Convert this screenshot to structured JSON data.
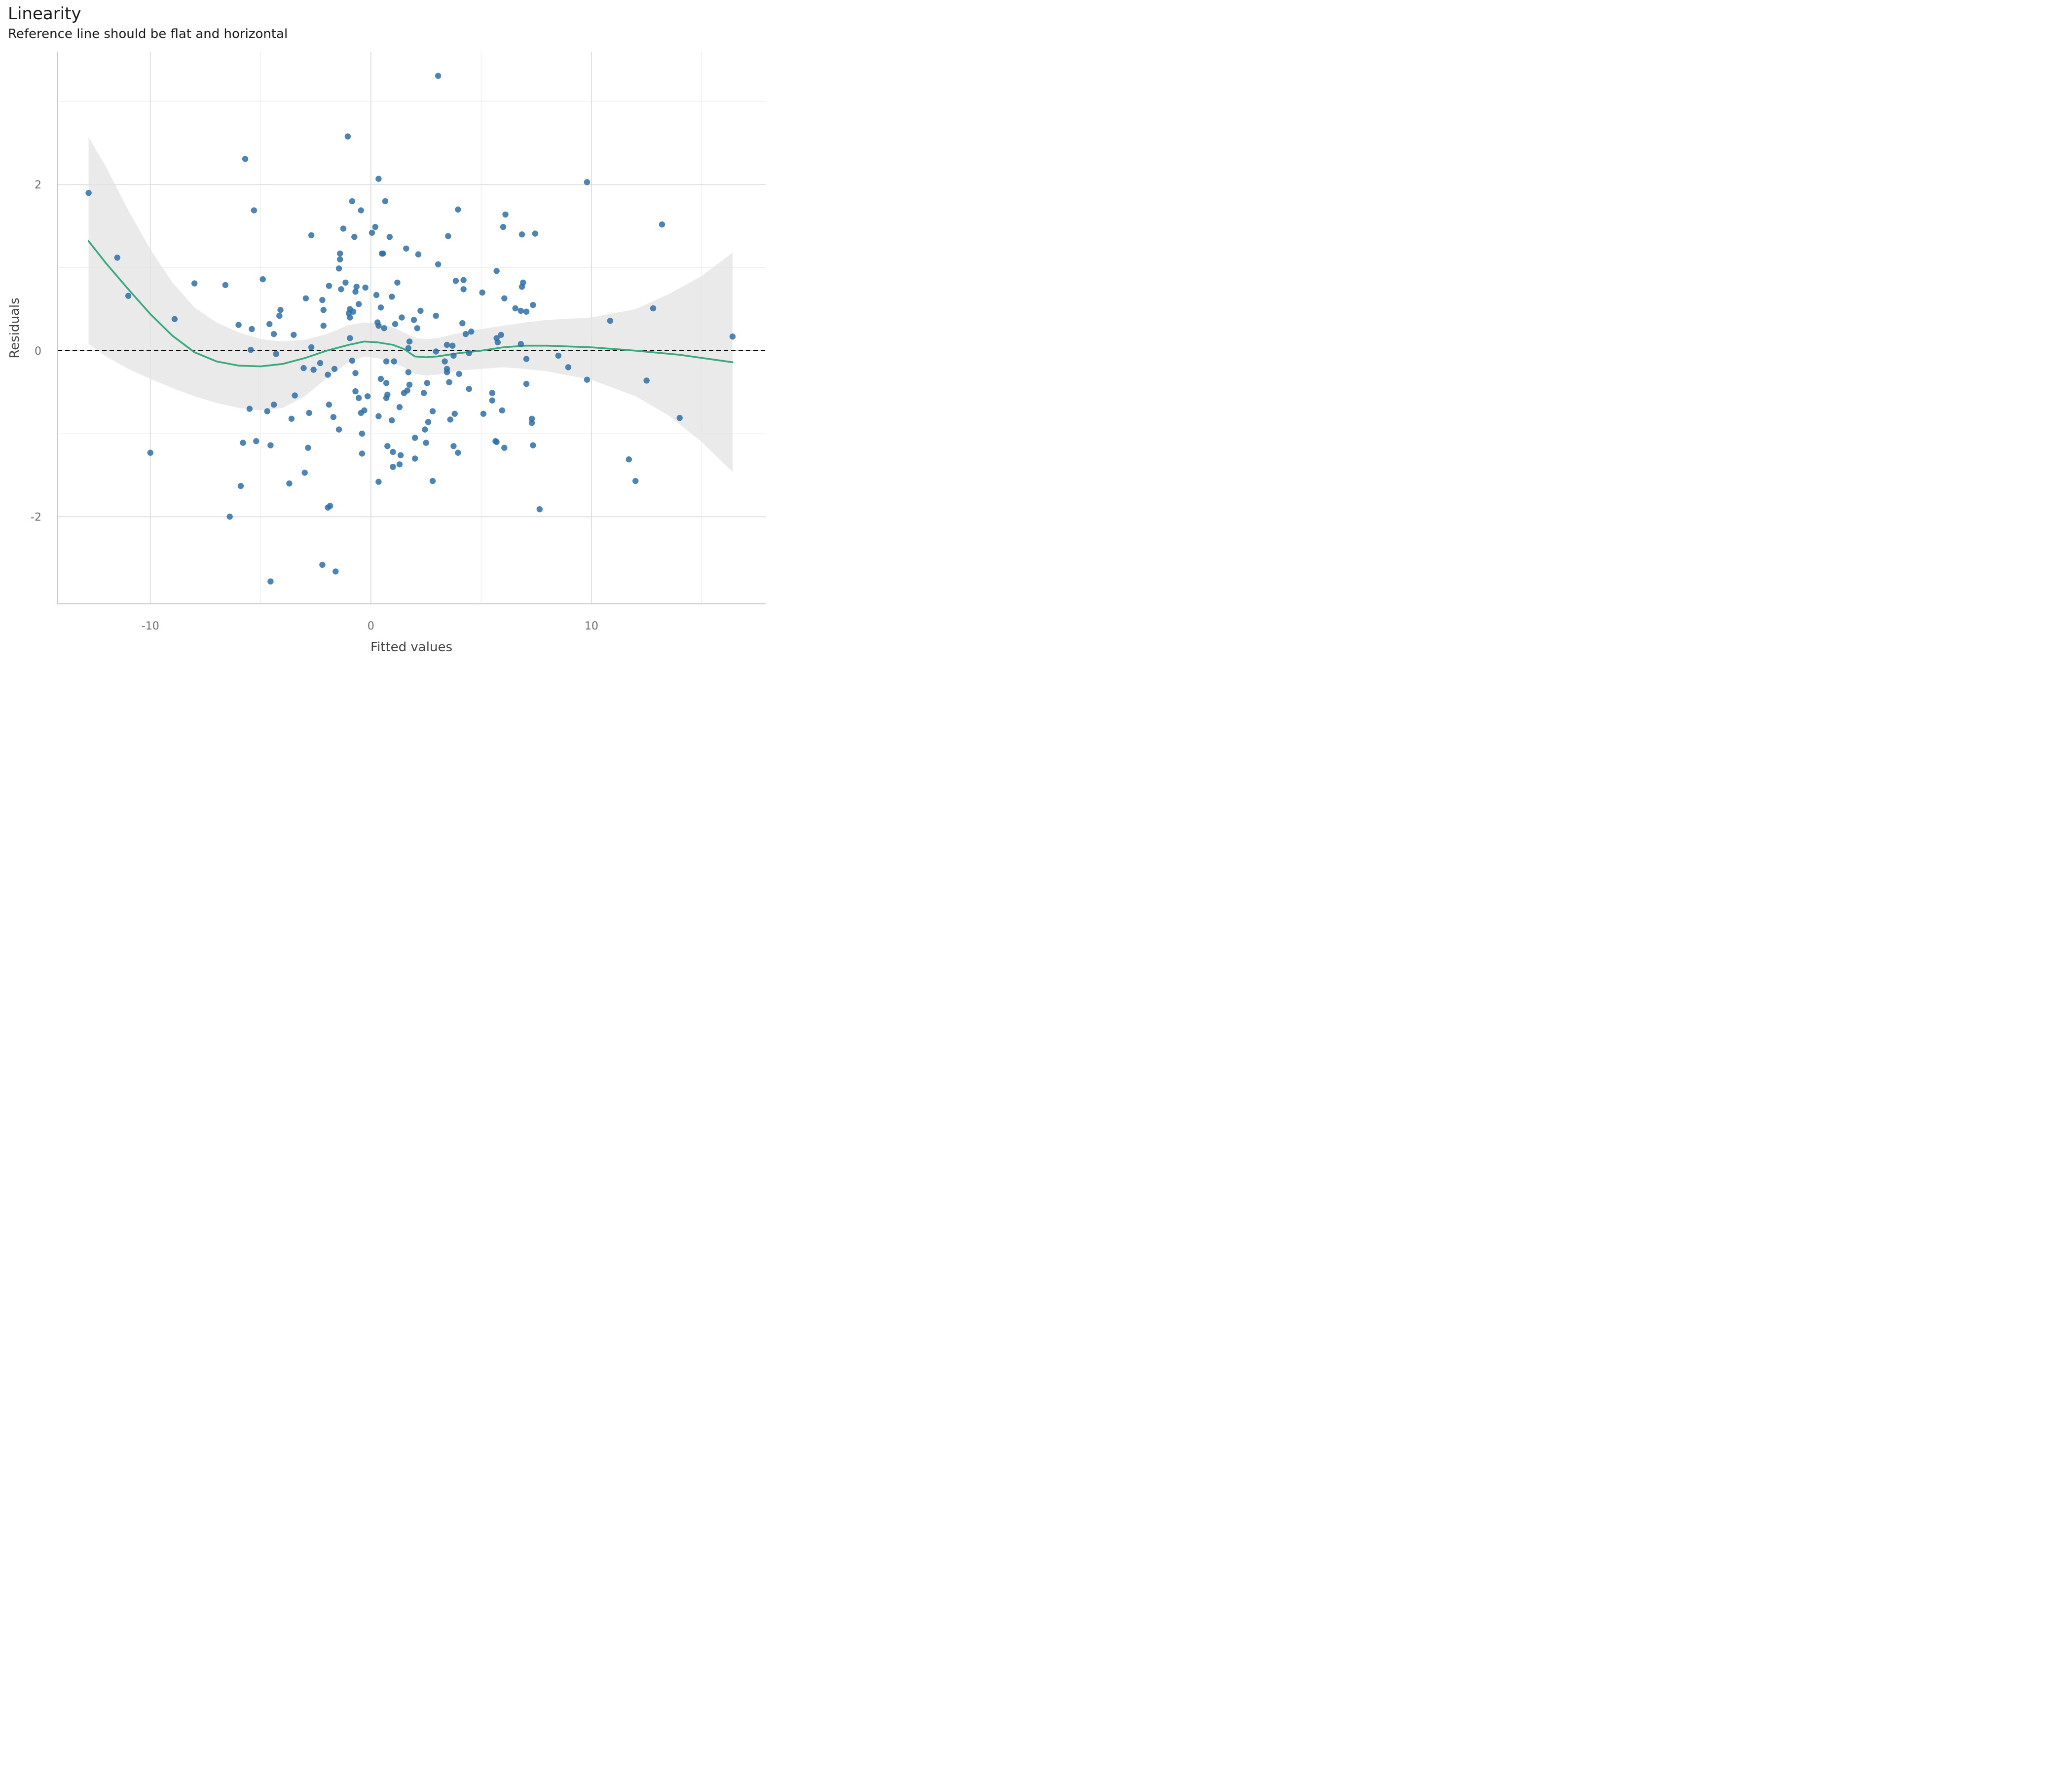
{
  "chart_data": {
    "type": "scatter",
    "title": "Linearity",
    "subtitle": "Reference line should be flat and horizontal",
    "xlabel": "Fitted values",
    "ylabel": "Residuals",
    "xlim": [
      -14.2,
      17.9
    ],
    "ylim": [
      -3.05,
      3.6
    ],
    "xticks": [
      -10,
      0,
      10
    ],
    "xtick_labels": [
      "-10",
      "0",
      "10"
    ],
    "yticks": [
      -2,
      0,
      2
    ],
    "ytick_labels": [
      "-2",
      "0",
      "2"
    ],
    "minor_xticks": [
      -5,
      5,
      15
    ],
    "minor_yticks": [
      -1,
      1,
      3
    ],
    "grid": true,
    "reference_line": 0,
    "colors": {
      "points": "#2b6ea8",
      "smooth": "#3aaa7e",
      "band": "#e3e3e3",
      "reference": "#000000",
      "grid": "#e0e0e0",
      "axis": "#c9c9c9"
    },
    "points": [
      [
        -12.8,
        1.9
      ],
      [
        -11.5,
        1.12
      ],
      [
        -11.0,
        0.66
      ],
      [
        -10.0,
        -1.23
      ],
      [
        -8.9,
        0.38
      ],
      [
        -8.0,
        0.81
      ],
      [
        -6.6,
        0.79
      ],
      [
        -6.4,
        -2.0
      ],
      [
        -6.0,
        0.31
      ],
      [
        -5.9,
        -1.63
      ],
      [
        -5.8,
        -1.11
      ],
      [
        -5.7,
        2.31
      ],
      [
        -5.5,
        -0.7
      ],
      [
        -5.45,
        0.01
      ],
      [
        -5.4,
        0.26
      ],
      [
        -5.3,
        1.69
      ],
      [
        -5.2,
        -1.09
      ],
      [
        -4.9,
        0.86
      ],
      [
        -4.7,
        -0.73
      ],
      [
        -4.6,
        0.32
      ],
      [
        -4.55,
        -1.14
      ],
      [
        -4.55,
        -2.78
      ],
      [
        -4.4,
        -0.65
      ],
      [
        -4.4,
        0.2
      ],
      [
        -4.3,
        -0.04
      ],
      [
        -4.15,
        0.42
      ],
      [
        -4.1,
        0.49
      ],
      [
        -3.7,
        -1.6
      ],
      [
        -3.6,
        -0.82
      ],
      [
        -3.5,
        0.19
      ],
      [
        -3.45,
        -0.54
      ],
      [
        -3.05,
        -0.21
      ],
      [
        -3.0,
        -1.47
      ],
      [
        -2.95,
        0.63
      ],
      [
        -2.85,
        -1.17
      ],
      [
        -2.8,
        -0.75
      ],
      [
        -2.7,
        1.39
      ],
      [
        -2.7,
        0.04
      ],
      [
        -2.6,
        -0.23
      ],
      [
        -2.3,
        -0.15
      ],
      [
        -2.2,
        0.61
      ],
      [
        -2.2,
        -2.58
      ],
      [
        -2.15,
        0.49
      ],
      [
        -2.15,
        0.3
      ],
      [
        -1.95,
        -0.29
      ],
      [
        -1.95,
        -1.89
      ],
      [
        -1.9,
        0.78
      ],
      [
        -1.9,
        -0.65
      ],
      [
        -1.85,
        -1.87
      ],
      [
        -1.7,
        -0.8
      ],
      [
        -1.65,
        -0.22
      ],
      [
        -1.6,
        -2.66
      ],
      [
        -1.45,
        0.99
      ],
      [
        -1.45,
        -0.95
      ],
      [
        -1.4,
        1.1
      ],
      [
        -1.4,
        1.17
      ],
      [
        -1.35,
        0.74
      ],
      [
        -1.25,
        1.47
      ],
      [
        -1.15,
        0.82
      ],
      [
        -1.05,
        2.58
      ],
      [
        -1.0,
        0.45
      ],
      [
        -0.95,
        0.5
      ],
      [
        -0.95,
        0.4
      ],
      [
        -0.95,
        0.15
      ],
      [
        -0.85,
        1.8
      ],
      [
        -0.85,
        -0.12
      ],
      [
        -0.8,
        0.47
      ],
      [
        -0.75,
        1.37
      ],
      [
        -0.7,
        0.71
      ],
      [
        -0.7,
        -0.27
      ],
      [
        -0.7,
        -0.49
      ],
      [
        -0.65,
        0.77
      ],
      [
        -0.55,
        0.56
      ],
      [
        -0.55,
        -0.57
      ],
      [
        -0.45,
        1.69
      ],
      [
        -0.45,
        -0.75
      ],
      [
        -0.4,
        -1.0
      ],
      [
        -0.4,
        -1.24
      ],
      [
        -0.3,
        -0.72
      ],
      [
        -0.25,
        0.76
      ],
      [
        -0.15,
        -0.55
      ],
      [
        0.05,
        1.42
      ],
      [
        0.2,
        1.49
      ],
      [
        0.25,
        0.67
      ],
      [
        0.3,
        0.34
      ],
      [
        0.35,
        0.3
      ],
      [
        0.35,
        2.07
      ],
      [
        0.35,
        -0.79
      ],
      [
        0.35,
        -1.58
      ],
      [
        0.45,
        0.52
      ],
      [
        0.45,
        -0.34
      ],
      [
        0.5,
        1.17
      ],
      [
        0.55,
        1.17
      ],
      [
        0.6,
        0.27
      ],
      [
        0.65,
        1.8
      ],
      [
        0.7,
        -0.13
      ],
      [
        0.7,
        -0.39
      ],
      [
        0.7,
        -0.57
      ],
      [
        0.75,
        -1.15
      ],
      [
        0.75,
        -0.53
      ],
      [
        0.85,
        1.37
      ],
      [
        0.95,
        -0.84
      ],
      [
        0.95,
        0.65
      ],
      [
        1.0,
        -1.4
      ],
      [
        1.0,
        -1.22
      ],
      [
        1.05,
        -0.13
      ],
      [
        1.1,
        0.32
      ],
      [
        1.2,
        0.82
      ],
      [
        1.3,
        -1.37
      ],
      [
        1.3,
        -0.68
      ],
      [
        1.35,
        -1.26
      ],
      [
        1.4,
        0.4
      ],
      [
        1.5,
        -0.51
      ],
      [
        1.6,
        1.23
      ],
      [
        1.65,
        -0.48
      ],
      [
        1.7,
        -0.26
      ],
      [
        1.7,
        0.03
      ],
      [
        1.75,
        0.11
      ],
      [
        1.75,
        -0.41
      ],
      [
        1.95,
        0.37
      ],
      [
        2.0,
        -1.05
      ],
      [
        2.0,
        -1.3
      ],
      [
        2.1,
        0.27
      ],
      [
        2.15,
        1.16
      ],
      [
        2.25,
        0.48
      ],
      [
        2.4,
        -0.51
      ],
      [
        2.45,
        -0.95
      ],
      [
        2.5,
        -1.11
      ],
      [
        2.55,
        -0.39
      ],
      [
        2.6,
        -0.86
      ],
      [
        2.8,
        -0.73
      ],
      [
        2.8,
        -1.57
      ],
      [
        2.95,
        0.42
      ],
      [
        2.95,
        -0.01
      ],
      [
        3.05,
        1.04
      ],
      [
        3.05,
        3.31
      ],
      [
        3.35,
        -0.13
      ],
      [
        3.45,
        -0.22
      ],
      [
        3.45,
        -0.26
      ],
      [
        3.45,
        0.07
      ],
      [
        3.5,
        1.38
      ],
      [
        3.55,
        -0.38
      ],
      [
        3.6,
        -0.83
      ],
      [
        3.7,
        0.06
      ],
      [
        3.75,
        -0.06
      ],
      [
        3.75,
        -1.15
      ],
      [
        3.8,
        -0.76
      ],
      [
        3.85,
        0.84
      ],
      [
        3.95,
        -1.23
      ],
      [
        3.95,
        1.7
      ],
      [
        4.0,
        -0.28
      ],
      [
        4.15,
        0.33
      ],
      [
        4.2,
        0.74
      ],
      [
        4.2,
        0.85
      ],
      [
        4.3,
        0.2
      ],
      [
        4.45,
        -0.46
      ],
      [
        4.45,
        -0.03
      ],
      [
        4.55,
        0.23
      ],
      [
        5.05,
        0.7
      ],
      [
        5.1,
        -0.76
      ],
      [
        5.5,
        -0.51
      ],
      [
        5.5,
        -0.6
      ],
      [
        5.65,
        -1.09
      ],
      [
        5.7,
        0.15
      ],
      [
        5.7,
        0.96
      ],
      [
        5.7,
        -1.1
      ],
      [
        5.75,
        0.1
      ],
      [
        5.9,
        0.19
      ],
      [
        5.95,
        -0.72
      ],
      [
        6.0,
        1.49
      ],
      [
        6.05,
        0.63
      ],
      [
        6.05,
        -1.17
      ],
      [
        6.1,
        1.64
      ],
      [
        6.55,
        0.51
      ],
      [
        6.8,
        0.48
      ],
      [
        6.8,
        0.08
      ],
      [
        6.85,
        0.77
      ],
      [
        6.85,
        1.4
      ],
      [
        6.9,
        0.82
      ],
      [
        7.05,
        0.47
      ],
      [
        7.05,
        -0.1
      ],
      [
        7.05,
        -0.4
      ],
      [
        7.3,
        -0.82
      ],
      [
        7.3,
        -0.87
      ],
      [
        7.35,
        0.55
      ],
      [
        7.35,
        -1.14
      ],
      [
        7.45,
        1.41
      ],
      [
        7.65,
        -1.91
      ],
      [
        8.5,
        -0.06
      ],
      [
        8.95,
        -0.2
      ],
      [
        9.8,
        2.03
      ],
      [
        9.8,
        -0.35
      ],
      [
        10.85,
        0.36
      ],
      [
        11.7,
        -1.31
      ],
      [
        12.0,
        -1.57
      ],
      [
        12.5,
        -0.36
      ],
      [
        12.8,
        0.51
      ],
      [
        13.2,
        1.52
      ],
      [
        14.0,
        -0.81
      ],
      [
        16.4,
        0.17
      ]
    ],
    "smooth": [
      [
        -12.8,
        1.32
      ],
      [
        -12.0,
        1.05
      ],
      [
        -11.0,
        0.74
      ],
      [
        -10.0,
        0.44
      ],
      [
        -9.0,
        0.18
      ],
      [
        -8.0,
        -0.02
      ],
      [
        -7.0,
        -0.13
      ],
      [
        -6.0,
        -0.18
      ],
      [
        -5.0,
        -0.19
      ],
      [
        -4.0,
        -0.16
      ],
      [
        -3.0,
        -0.09
      ],
      [
        -2.0,
        0.0
      ],
      [
        -1.0,
        0.07
      ],
      [
        -0.3,
        0.11
      ],
      [
        0.3,
        0.1
      ],
      [
        1.0,
        0.07
      ],
      [
        1.5,
        0.02
      ],
      [
        2.0,
        -0.07
      ],
      [
        2.5,
        -0.08
      ],
      [
        3.0,
        -0.07
      ],
      [
        4.0,
        -0.03
      ],
      [
        5.0,
        0.0
      ],
      [
        6.0,
        0.04
      ],
      [
        7.0,
        0.06
      ],
      [
        8.0,
        0.06
      ],
      [
        10.0,
        0.04
      ],
      [
        12.0,
        0.0
      ],
      [
        14.0,
        -0.05
      ],
      [
        16.4,
        -0.14
      ]
    ],
    "band_upper": [
      [
        -12.8,
        2.57
      ],
      [
        -12.0,
        2.21
      ],
      [
        -11.0,
        1.69
      ],
      [
        -10.0,
        1.22
      ],
      [
        -9.0,
        0.82
      ],
      [
        -8.0,
        0.52
      ],
      [
        -7.0,
        0.34
      ],
      [
        -6.0,
        0.22
      ],
      [
        -5.0,
        0.14
      ],
      [
        -4.0,
        0.11
      ],
      [
        -3.0,
        0.13
      ],
      [
        -2.0,
        0.2
      ],
      [
        -1.0,
        0.31
      ],
      [
        -0.3,
        0.34
      ],
      [
        0.3,
        0.33
      ],
      [
        1.0,
        0.28
      ],
      [
        1.5,
        0.22
      ],
      [
        2.0,
        0.15
      ],
      [
        2.5,
        0.14
      ],
      [
        3.0,
        0.15
      ],
      [
        4.0,
        0.21
      ],
      [
        5.0,
        0.26
      ],
      [
        6.0,
        0.3
      ],
      [
        7.0,
        0.34
      ],
      [
        8.0,
        0.37
      ],
      [
        10.0,
        0.4
      ],
      [
        12.0,
        0.5
      ],
      [
        13.5,
        0.68
      ],
      [
        15.0,
        0.9
      ],
      [
        16.4,
        1.18
      ]
    ],
    "band_lower": [
      [
        -12.8,
        0.08
      ],
      [
        -12.0,
        -0.07
      ],
      [
        -11.0,
        -0.22
      ],
      [
        -10.0,
        -0.34
      ],
      [
        -9.0,
        -0.45
      ],
      [
        -8.0,
        -0.55
      ],
      [
        -7.0,
        -0.63
      ],
      [
        -6.0,
        -0.69
      ],
      [
        -5.0,
        -0.72
      ],
      [
        -4.0,
        -0.69
      ],
      [
        -3.0,
        -0.55
      ],
      [
        -2.0,
        -0.33
      ],
      [
        -1.0,
        -0.14
      ],
      [
        -0.3,
        -0.07
      ],
      [
        0.3,
        -0.09
      ],
      [
        1.0,
        -0.15
      ],
      [
        1.5,
        -0.2
      ],
      [
        2.0,
        -0.28
      ],
      [
        2.5,
        -0.3
      ],
      [
        3.0,
        -0.29
      ],
      [
        4.0,
        -0.24
      ],
      [
        5.0,
        -0.22
      ],
      [
        6.0,
        -0.2
      ],
      [
        7.0,
        -0.22
      ],
      [
        8.0,
        -0.25
      ],
      [
        10.0,
        -0.35
      ],
      [
        12.0,
        -0.55
      ],
      [
        13.5,
        -0.78
      ],
      [
        15.0,
        -1.1
      ],
      [
        16.4,
        -1.46
      ]
    ]
  }
}
